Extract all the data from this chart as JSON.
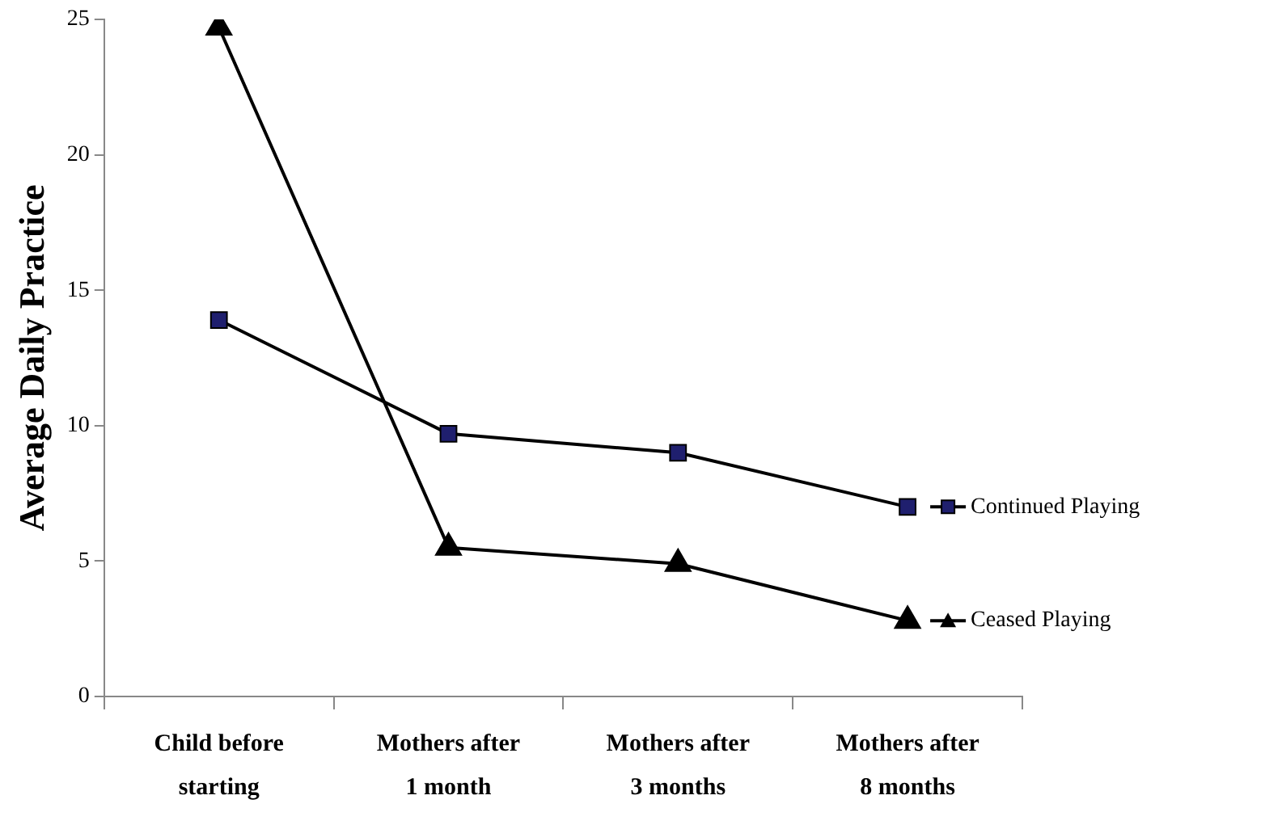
{
  "chart_data": {
    "type": "line",
    "ylabel": "Average Daily Practice",
    "categories": [
      "Child before starting",
      "Mothers after 1 month",
      "Mothers after 3 months",
      "Mothers after 8 months"
    ],
    "series": [
      {
        "name": "Continued Playing",
        "color": "#000000",
        "marker": "square",
        "values": [
          13.9,
          9.7,
          9.0,
          7.0
        ]
      },
      {
        "name": "Ceased Playing",
        "color": "#000000",
        "marker": "triangle",
        "values": [
          24.7,
          5.5,
          4.9,
          2.8
        ]
      }
    ],
    "ylim": [
      0,
      25
    ],
    "yticks": [
      0,
      5,
      10,
      15,
      20,
      25
    ],
    "grid": false,
    "legend": "right",
    "line_style": "solid"
  }
}
